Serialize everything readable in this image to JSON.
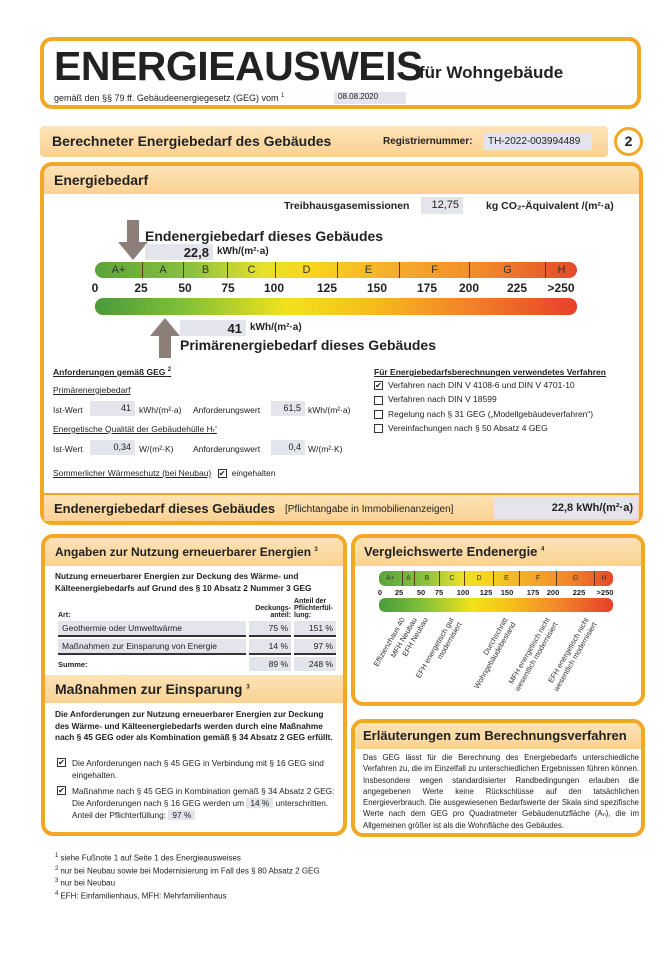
{
  "header": {
    "title": "ENERGIEAUSWEIS",
    "title_suffix": "für Wohngebäude",
    "subtitle": "gemäß den §§ 79 ff. Gebäudeenergiegesetz (GEG) vom",
    "subtitle_note": "1",
    "date": "08.08.2020"
  },
  "section": {
    "title": "Berechneter Energiebedarf des Gebäudes",
    "reg_label": "Registriernummer:",
    "reg_number": "TH-2022-003994489",
    "page_number": "2"
  },
  "energiebedarf": {
    "title": "Energiebedarf",
    "ghg_label": "Treibhausgasemissionen",
    "ghg_value": "12,75",
    "ghg_unit": "kg CO₂-Äquivalent /(m²·a)",
    "end_label": "Endenergiebedarf dieses Gebäudes",
    "end_value": "22,8",
    "end_unit": "kWh/(m²·a)",
    "primary_label": "Primärenergiebedarf dieses Gebäudes",
    "primary_value": "41",
    "primary_unit": "kWh/(m²·a)",
    "classes": [
      "A+",
      "A",
      "B",
      "C",
      "D",
      "E",
      "F",
      "G",
      "H"
    ],
    "ticks": [
      "0",
      "25",
      "50",
      "75",
      "100",
      "125",
      "150",
      "175",
      "200",
      "225",
      ">250"
    ],
    "end_marker_value": 22.8,
    "primary_marker_value": 41
  },
  "requirements": {
    "title": "Anforderungen gemäß GEG",
    "title_note": "2",
    "primary_title": "Primärenergiebedarf",
    "ist_label": "Ist-Wert",
    "primary_ist": "41",
    "primary_unit": "kWh/(m²·a)",
    "anf_label": "Anforderungswert",
    "primary_anf": "61,5",
    "envelope_title": "Energetische Qualität der Gebäudehülle Hₜ'",
    "envelope_ist": "0,34",
    "envelope_unit": "W/(m²·K)",
    "envelope_anf": "0,4",
    "summer_label": "Sommerlicher Wärmeschutz (bei Neubau)",
    "summer_checked": true,
    "summer_value": "eingehalten"
  },
  "methods": {
    "title": "Für Energiebedarfsberechnungen verwendetes Verfahren",
    "items": [
      {
        "label": "Verfahren nach DIN V 4108-6 und DIN V 4701-10",
        "checked": true
      },
      {
        "label": "Verfahren nach DIN V 18599",
        "checked": false
      },
      {
        "label": "Regelung nach § 31 GEG („Modellgebäudeverfahren“)",
        "checked": false
      },
      {
        "label": "Vereinfachungen nach § 50 Absatz 4 GEG",
        "checked": false
      }
    ]
  },
  "end_summary": {
    "label": "Endenergiebedarf dieses Gebäudes",
    "note": "[Pflichtangabe in Immobilienanzeigen]",
    "value": "22,8 kWh/(m²·a)"
  },
  "renewables": {
    "title": "Angaben zur Nutzung erneuerbarer Energien",
    "title_note": "3",
    "intro": "Nutzung erneuerbarer Energien zur Deckung des Wärme- und Kälteenergiebedarfs auf Grund des § 10 Absatz 2 Nummer 3 GEG",
    "col_art": "Art:",
    "col_deckung": "Deckungs-anteil:",
    "col_anteil": "Anteil der Pflichterfül-lung:",
    "rows": [
      {
        "art": "Geothermie oder Umweltwärme",
        "deckung": "75 %",
        "anteil": "151 %"
      },
      {
        "art": "Maßnahmen zur Einsparung von Energie",
        "deckung": "14 %",
        "anteil": "97 %"
      }
    ],
    "sum_label": "Summe:",
    "sum_deckung": "89 %",
    "sum_anteil": "248 %"
  },
  "measures": {
    "title": "Maßnahmen zur Einsparung",
    "title_note": "3",
    "intro": "Die Anforderungen zur Nutzung erneuerbarer Energien zur Deckung des Wärme- und Kälteenergiebedarfs werden durch eine Maßnahme nach § 45 GEG oder als Kombination gemäß § 34 Absatz 2 GEG erfüllt.",
    "item1": "Die Anforderungen nach § 45 GEG in Verbindung mit § 16 GEG sind eingehalten.",
    "item2_a": "Maßnahme nach § 45 GEG in Kombination gemäß § 34 Absatz 2 GEG: Die Anforderungen nach § 16 GEG werden um",
    "item2_value": "14 %",
    "item2_b": "unterschritten. Anteil der Pflichterfüllung:",
    "item2_value2": "97 %",
    "item1_checked": true,
    "item2_checked": true
  },
  "comparison": {
    "title": "Vergleichswerte Endenergie",
    "title_note": "4",
    "labels": [
      "Effizienzhaus 40",
      "MFH Neubau",
      "EFH Neubau",
      "EFH energetisch gut modernisiert",
      "Durchschnitt Wohngebäudebestand",
      "MFH energetisch nicht wesentlich modernisiert",
      "EFH energetisch nicht wesentlich modernisiert"
    ]
  },
  "explanation": {
    "title": "Erläuterungen zum Berechnungsverfahren",
    "text": "Das GEG lässt für die Berechnung des Energiebedarfs unterschiedliche Verfahren zu, die im Einzelfall zu unterschiedlichen Ergebnissen führen können. Insbesondere wegen standardisierter Randbedingungen erlauben die angegebenen Werte keine Rückschlüsse auf den tatsächlichen Energieverbrauch. Die ausgewiesenen Bedarfswerte der Skala sind spezifische Werte nach dem GEG pro Quadratmeter Gebäudenutzfläche (Aₙ), die im Allgemeinen größer ist als die Wohnfläche des Gebäudes."
  },
  "footnotes": [
    {
      "n": "1",
      "text": "siehe Fußnote 1 auf Seite 1 des Energieausweises"
    },
    {
      "n": "2",
      "text": "nur bei Neubau sowie bei Modernisierung im Fall des § 80 Absatz 2 GEG"
    },
    {
      "n": "3",
      "text": "nur bei Neubau"
    },
    {
      "n": "4",
      "text": "EFH: Einfamilienhaus, MFH: Mehrfamilienhaus"
    }
  ],
  "colors": {
    "frame": "#f2a726",
    "header_fill": "#fbd193",
    "field": "#e4e4ec",
    "arrow": "#8c7f7a"
  }
}
